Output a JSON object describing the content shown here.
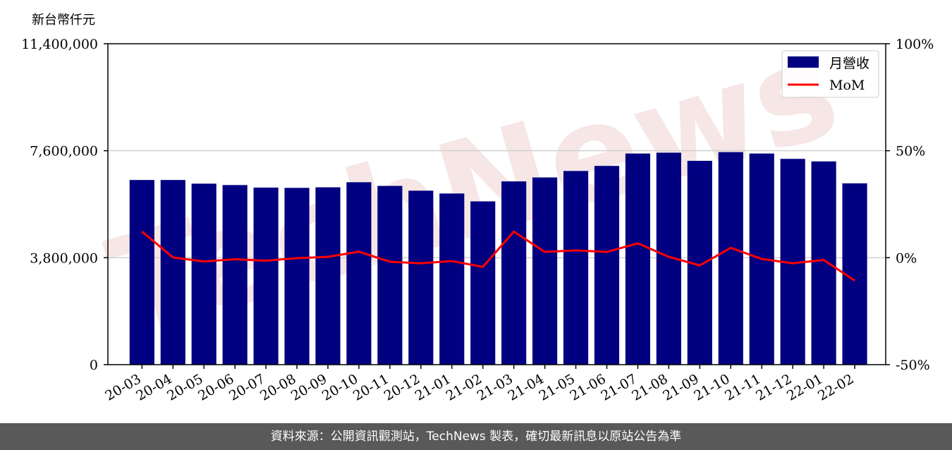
{
  "chart_data": {
    "type": "bar",
    "ylabel_left": "新台幣仟元",
    "watermark": "TechNews",
    "categories": [
      "20-03",
      "20-04",
      "20-05",
      "20-06",
      "20-07",
      "20-08",
      "20-09",
      "20-10",
      "20-11",
      "20-12",
      "21-01",
      "21-02",
      "21-03",
      "21-04",
      "21-05",
      "21-06",
      "21-07",
      "21-08",
      "21-09",
      "21-10",
      "21-11",
      "21-12",
      "22-01",
      "22-02"
    ],
    "series": [
      {
        "name": "月營收",
        "type": "bar",
        "axis": "left",
        "color": "#000080",
        "values": [
          6560000,
          6560000,
          6430000,
          6380000,
          6290000,
          6280000,
          6300000,
          6480000,
          6350000,
          6180000,
          6080000,
          5800000,
          6510000,
          6650000,
          6880000,
          7060000,
          7500000,
          7530000,
          7240000,
          7550000,
          7500000,
          7310000,
          7220000,
          6440000
        ]
      },
      {
        "name": "MoM",
        "type": "line",
        "axis": "right",
        "color": "#ff0000",
        "values": [
          12.2,
          0.1,
          -1.8,
          -0.7,
          -1.4,
          -0.2,
          0.4,
          2.8,
          -1.9,
          -2.6,
          -1.6,
          -4.3,
          12.2,
          2.7,
          3.4,
          2.7,
          6.7,
          0.4,
          -3.6,
          4.6,
          -0.6,
          -2.6,
          -1.1,
          -10.7
        ]
      }
    ],
    "yticks_left": [
      "0",
      "3,800,000",
      "7,600,000",
      "11,400,000"
    ],
    "ylim_left": [
      0,
      11400000
    ],
    "yticks_right": [
      "-50%",
      "0%",
      "50%",
      "100%"
    ],
    "ylim_right": [
      -50,
      100
    ],
    "grid": "horizontal",
    "legend_position": "top-right"
  },
  "footer_text": "資料來源：公開資訊觀測站，TechNews 製表，確切最新訊息以原站公告為準"
}
